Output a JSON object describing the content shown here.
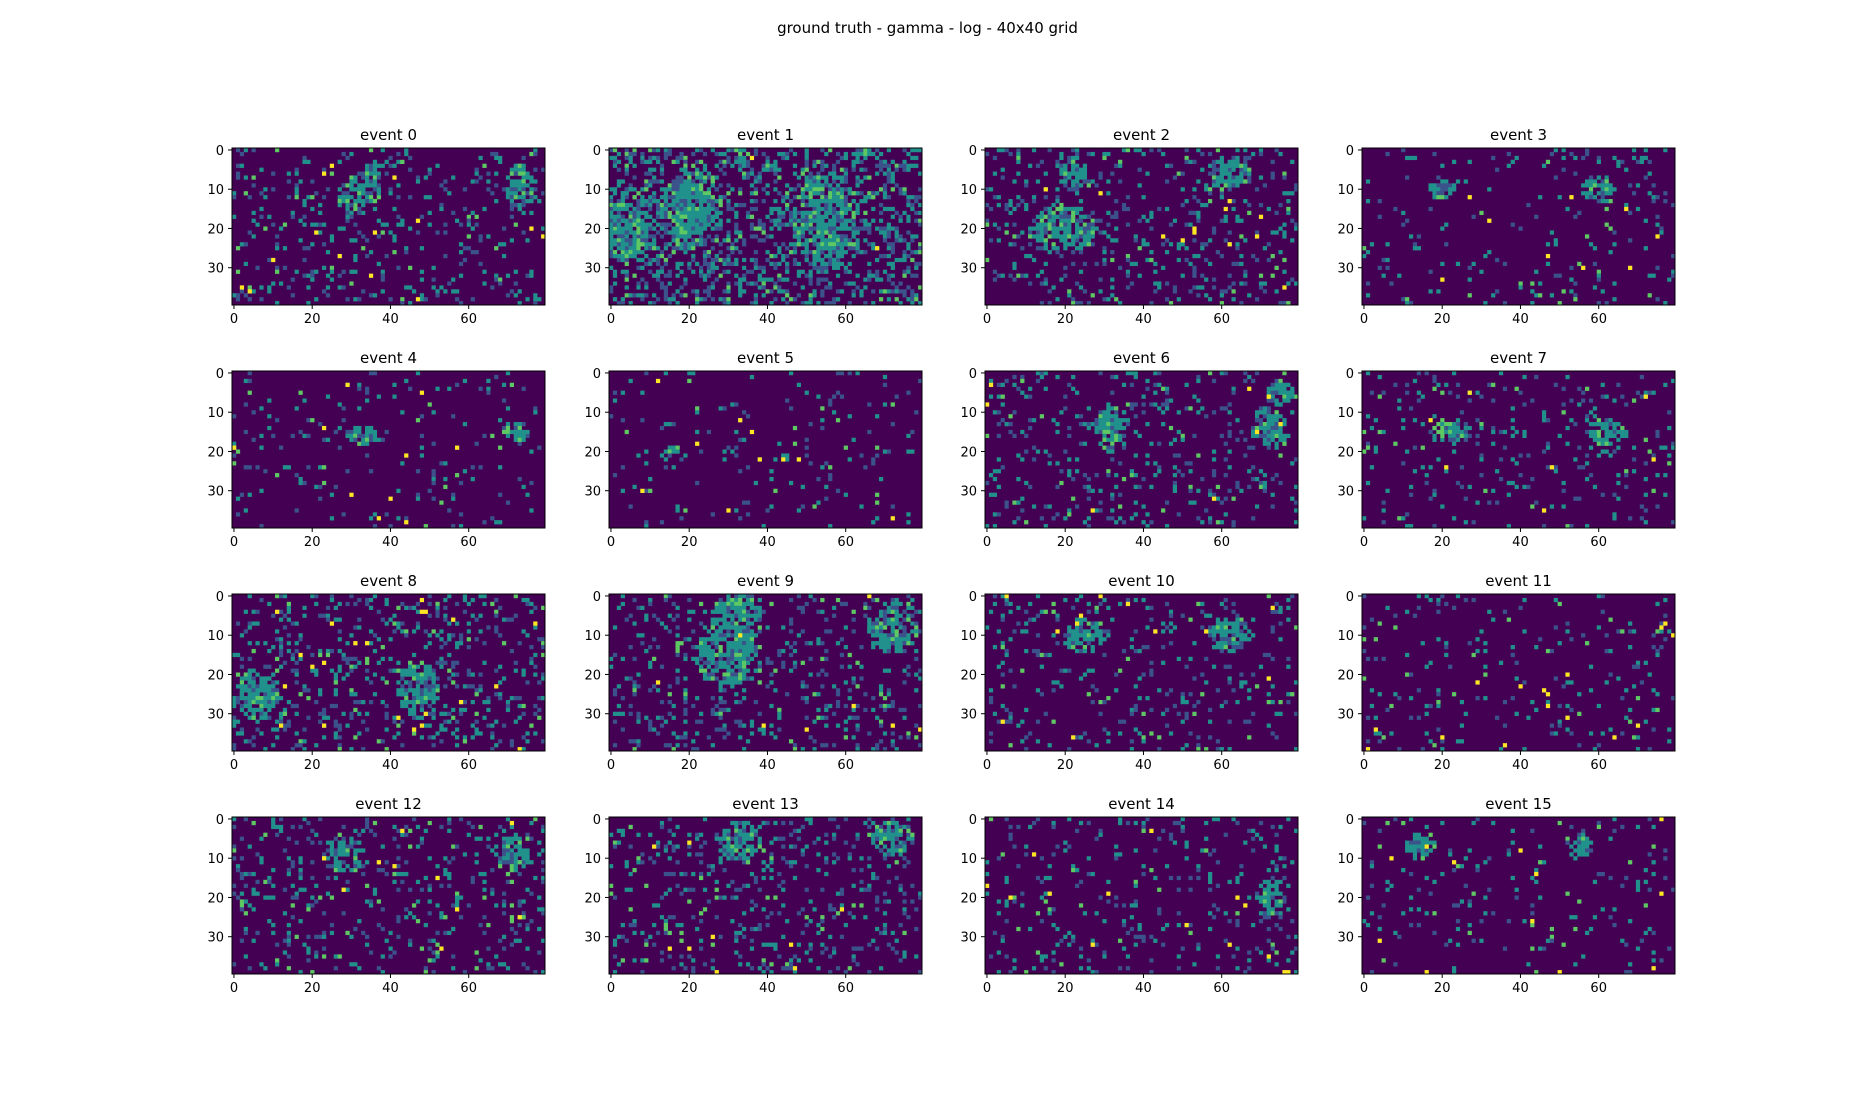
{
  "figure": {
    "suptitle": "ground truth - gamma - log - 40x40 grid"
  },
  "chart_data": {
    "type": "heatmap",
    "title": "ground truth - gamma - log - 40x40 grid",
    "grid_shape": [
      40,
      80
    ],
    "xticks": [
      "0",
      "20",
      "40",
      "60"
    ],
    "yticks": [
      "0",
      "10",
      "20",
      "30"
    ],
    "colormap": [
      "#440154",
      "#3b528b",
      "#21918c",
      "#5ec962",
      "#fde725"
    ],
    "background_color": "#440154",
    "subplots": [
      {
        "title": "event 0",
        "density": 0.12,
        "clusters": [
          [
            8,
            35,
            5,
            2
          ],
          [
            10,
            73,
            6,
            3
          ],
          [
            12,
            30,
            5,
            3
          ]
        ],
        "hot": 14
      },
      {
        "title": "event 1",
        "density": 0.35,
        "clusters": [
          [
            20,
            5,
            10,
            5
          ],
          [
            18,
            55,
            12,
            8
          ],
          [
            15,
            20,
            10,
            8
          ]
        ],
        "hot": 2
      },
      {
        "title": "event 2",
        "density": 0.16,
        "clusters": [
          [
            6,
            22,
            4,
            3
          ],
          [
            6,
            62,
            4,
            5
          ],
          [
            20,
            20,
            6,
            8
          ]
        ],
        "hot": 12
      },
      {
        "title": "event 3",
        "density": 0.06,
        "clusters": [
          [
            10,
            20,
            3,
            3
          ],
          [
            10,
            60,
            3,
            4
          ]
        ],
        "hot": 9
      },
      {
        "title": "event 4",
        "density": 0.06,
        "clusters": [
          [
            16,
            33,
            2,
            4
          ],
          [
            15,
            72,
            2,
            3
          ]
        ],
        "hot": 10
      },
      {
        "title": "event 5",
        "density": 0.05,
        "clusters": [
          [
            20,
            15,
            2,
            2
          ]
        ],
        "hot": 10
      },
      {
        "title": "event 6",
        "density": 0.12,
        "clusters": [
          [
            14,
            32,
            6,
            4
          ],
          [
            14,
            72,
            5,
            4
          ],
          [
            5,
            75,
            3,
            3
          ]
        ],
        "hot": 8
      },
      {
        "title": "event 7",
        "density": 0.09,
        "clusters": [
          [
            15,
            22,
            3,
            5
          ],
          [
            15,
            62,
            3,
            5
          ]
        ],
        "hot": 7
      },
      {
        "title": "event 8",
        "density": 0.16,
        "clusters": [
          [
            25,
            6,
            6,
            5
          ],
          [
            24,
            47,
            7,
            5
          ]
        ],
        "hot": 22
      },
      {
        "title": "event 9",
        "density": 0.14,
        "clusters": [
          [
            8,
            72,
            6,
            6
          ],
          [
            6,
            32,
            6,
            6
          ],
          [
            15,
            30,
            8,
            8
          ]
        ],
        "hot": 8
      },
      {
        "title": "event 10",
        "density": 0.1,
        "clusters": [
          [
            10,
            25,
            4,
            5
          ],
          [
            10,
            62,
            4,
            5
          ]
        ],
        "hot": 12
      },
      {
        "title": "event 11",
        "density": 0.06,
        "clusters": [],
        "hot": 16
      },
      {
        "title": "event 12",
        "density": 0.13,
        "clusters": [
          [
            9,
            28,
            4,
            5
          ],
          [
            9,
            71,
            5,
            4
          ]
        ],
        "hot": 10
      },
      {
        "title": "event 13",
        "density": 0.14,
        "clusters": [
          [
            5,
            72,
            4,
            5
          ],
          [
            6,
            33,
            5,
            5
          ]
        ],
        "hot": 9
      },
      {
        "title": "event 14",
        "density": 0.09,
        "clusters": [
          [
            20,
            72,
            5,
            3
          ]
        ],
        "hot": 14
      },
      {
        "title": "event 15",
        "density": 0.05,
        "clusters": [
          [
            7,
            14,
            3,
            3
          ],
          [
            7,
            55,
            3,
            3
          ]
        ],
        "hot": 12
      }
    ]
  }
}
